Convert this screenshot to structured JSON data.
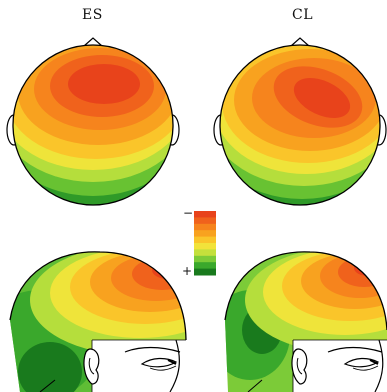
{
  "maps": [
    {
      "label": "ES"
    },
    {
      "label": "CL"
    }
  ],
  "colorbar": {
    "top_sign": "−",
    "bottom_sign": "+",
    "colors": [
      "#e8431b",
      "#f0621c",
      "#f6841d",
      "#f8a21f",
      "#fac52a",
      "#f2e33a",
      "#c4e03c",
      "#7ccb38",
      "#3aa82c",
      "#197a1d"
    ]
  }
}
